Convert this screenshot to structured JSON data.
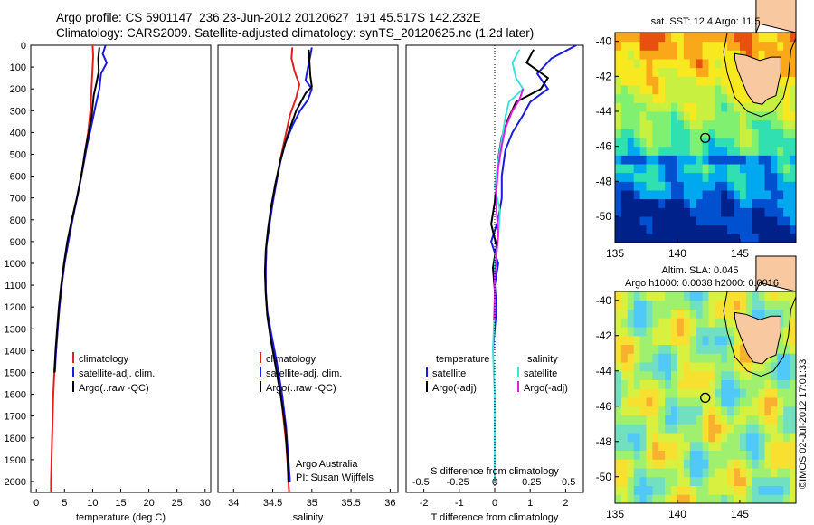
{
  "header": {
    "title_line1": "Argo profile: CS 5901147_236 23-Jun-2012 20120627_191 45.517S 142.232E",
    "title_line2": "Climatology: CARS2009. Satellite-adjusted climatology: synTS_20120625.nc (1.2d later)"
  },
  "footer_credit": "©IMOS 02-Jul-2012 17:01:33",
  "colors": {
    "climatology": "#e02020",
    "satellite": "#1a1ae0",
    "argo": "#000000",
    "sat_salinity": "#40e0e0",
    "argo_salinity": "#e020e0"
  },
  "chart_data": [
    {
      "type": "line",
      "xlabel": "temperature (deg C)",
      "ylabel": "",
      "xlim": [
        -1,
        31
      ],
      "ylim": [
        2050,
        0
      ],
      "xticks": [
        0,
        5,
        10,
        15,
        20,
        25,
        30
      ],
      "yticks": [
        0,
        100,
        200,
        300,
        400,
        500,
        600,
        700,
        800,
        900,
        1000,
        1100,
        1200,
        1300,
        1400,
        1500,
        1600,
        1700,
        1800,
        1900,
        2000
      ],
      "legend": [
        "climatology",
        "satellite-adj. clim.",
        "Argo(..raw -QC)"
      ],
      "series": [
        {
          "name": "climatology",
          "color": "#e02020",
          "points": [
            [
              10.0,
              0
            ],
            [
              10.1,
              50
            ],
            [
              10.0,
              100
            ],
            [
              9.8,
              200
            ],
            [
              9.6,
              300
            ],
            [
              9.2,
              400
            ],
            [
              8.6,
              500
            ],
            [
              8.0,
              600
            ],
            [
              7.2,
              700
            ],
            [
              6.3,
              800
            ],
            [
              5.6,
              900
            ],
            [
              5.0,
              1000
            ],
            [
              4.5,
              1100
            ],
            [
              4.1,
              1200
            ],
            [
              3.8,
              1300
            ],
            [
              3.5,
              1400
            ],
            [
              3.2,
              1500
            ],
            [
              3.0,
              1600
            ],
            [
              2.9,
              1700
            ],
            [
              2.8,
              1800
            ],
            [
              2.7,
              1900
            ],
            [
              2.6,
              2000
            ],
            [
              2.6,
              2050
            ]
          ]
        },
        {
          "name": "satellite-adj. clim.",
          "color": "#1a1ae0",
          "points": [
            [
              12.3,
              0
            ],
            [
              11.8,
              40
            ],
            [
              12.5,
              80
            ],
            [
              11.5,
              130
            ],
            [
              11.2,
              200
            ],
            [
              10.5,
              280
            ],
            [
              9.7,
              380
            ],
            [
              9.0,
              460
            ],
            [
              8.3,
              560
            ],
            [
              7.4,
              680
            ],
            [
              6.5,
              790
            ],
            [
              5.7,
              900
            ],
            [
              5.0,
              1000
            ],
            [
              4.5,
              1100
            ],
            [
              4.1,
              1200
            ],
            [
              3.8,
              1300
            ],
            [
              3.5,
              1400
            ],
            [
              3.3,
              1500
            ]
          ]
        },
        {
          "name": "Argo(..raw -QC)",
          "color": "#000000",
          "points": [
            [
              11.2,
              10
            ],
            [
              11.0,
              60
            ],
            [
              11.1,
              120
            ],
            [
              10.7,
              170
            ],
            [
              10.2,
              230
            ],
            [
              9.8,
              330
            ],
            [
              9.3,
              400
            ],
            [
              8.7,
              480
            ],
            [
              8.1,
              580
            ],
            [
              7.2,
              700
            ],
            [
              6.3,
              800
            ],
            [
              5.5,
              900
            ],
            [
              4.9,
              1000
            ],
            [
              4.4,
              1100
            ],
            [
              4.0,
              1200
            ],
            [
              3.7,
              1300
            ],
            [
              3.4,
              1400
            ],
            [
              3.2,
              1500
            ]
          ]
        }
      ]
    },
    {
      "type": "line",
      "xlabel": "salinity",
      "xlim": [
        33.8,
        36.1
      ],
      "ylim": [
        2050,
        0
      ],
      "xticks": [
        34,
        34.5,
        35,
        35.5,
        36
      ],
      "xticklabels": [
        "34",
        "34.5",
        "35",
        "35.5",
        "36"
      ],
      "legend": [
        "climatology",
        "satellite-adj. clim.",
        "Argo(..raw -QC)"
      ],
      "annotations": [
        "Argo Australia",
        "PI: Susan Wijffels"
      ],
      "series": [
        {
          "name": "climatology",
          "color": "#e02020",
          "points": [
            [
              34.75,
              10
            ],
            [
              34.74,
              60
            ],
            [
              34.78,
              120
            ],
            [
              34.84,
              180
            ],
            [
              34.8,
              240
            ],
            [
              34.72,
              320
            ],
            [
              34.66,
              420
            ],
            [
              34.6,
              520
            ],
            [
              34.55,
              620
            ],
            [
              34.5,
              720
            ],
            [
              34.45,
              820
            ],
            [
              34.42,
              920
            ],
            [
              34.41,
              1020
            ],
            [
              34.41,
              1120
            ],
            [
              34.43,
              1220
            ],
            [
              34.47,
              1320
            ],
            [
              34.52,
              1420
            ],
            [
              34.57,
              1520
            ],
            [
              34.61,
              1620
            ],
            [
              34.64,
              1720
            ],
            [
              34.67,
              1820
            ],
            [
              34.69,
              1920
            ],
            [
              34.7,
              2000
            ],
            [
              34.71,
              2050
            ]
          ]
        },
        {
          "name": "satellite-adj. clim.",
          "color": "#1a1ae0",
          "points": [
            [
              35.0,
              10
            ],
            [
              34.98,
              50
            ],
            [
              34.95,
              100
            ],
            [
              34.92,
              160
            ],
            [
              35.0,
              200
            ],
            [
              34.95,
              250
            ],
            [
              34.85,
              300
            ],
            [
              34.75,
              370
            ],
            [
              34.66,
              450
            ],
            [
              34.6,
              530
            ],
            [
              34.55,
              620
            ],
            [
              34.5,
              720
            ],
            [
              34.46,
              820
            ],
            [
              34.42,
              920
            ],
            [
              34.41,
              1020
            ],
            [
              34.41,
              1120
            ],
            [
              34.43,
              1220
            ],
            [
              34.48,
              1320
            ],
            [
              34.55,
              1450
            ],
            [
              34.62,
              1600
            ],
            [
              34.67,
              1750
            ],
            [
              34.7,
              1900
            ],
            [
              34.72,
              2000
            ]
          ]
        },
        {
          "name": "Argo(..raw -QC)",
          "color": "#000000",
          "points": [
            [
              34.96,
              20
            ],
            [
              34.97,
              80
            ],
            [
              34.98,
              140
            ],
            [
              35.0,
              190
            ],
            [
              34.92,
              220
            ],
            [
              34.8,
              300
            ],
            [
              34.72,
              380
            ],
            [
              34.65,
              460
            ],
            [
              34.59,
              540
            ],
            [
              34.53,
              640
            ],
            [
              34.48,
              740
            ],
            [
              34.44,
              840
            ],
            [
              34.41,
              940
            ],
            [
              34.4,
              1040
            ],
            [
              34.41,
              1140
            ],
            [
              34.43,
              1240
            ],
            [
              34.47,
              1340
            ],
            [
              34.53,
              1460
            ],
            [
              34.6,
              1600
            ],
            [
              34.66,
              1750
            ],
            [
              34.69,
              1900
            ],
            [
              34.7,
              2000
            ]
          ]
        }
      ]
    },
    {
      "type": "line",
      "xlabel": "T difference from climatology",
      "xlim": [
        -2.5,
        2.5
      ],
      "ylim": [
        2050,
        0
      ],
      "xticks": [
        -2,
        -1,
        0,
        1,
        2
      ],
      "secondary_xlabel": "S difference from climatology",
      "secondary_xticks": [
        -0.5,
        -0.25,
        0,
        0.25,
        0.5
      ],
      "secondary_xticklabels": [
        "-0.5",
        "-0.25",
        "0",
        "0.25",
        "0.5"
      ],
      "legend": [
        "temperature",
        "satellite",
        "Argo(-adj)",
        "salinity",
        "satellite",
        "Argo(-adj)"
      ],
      "series": [
        {
          "name": "satellite",
          "color": "#1a1ae0",
          "points": [
            [
              2.3,
              0
            ],
            [
              1.6,
              60
            ],
            [
              1.2,
              130
            ],
            [
              1.5,
              200
            ],
            [
              1.0,
              260
            ],
            [
              0.8,
              320
            ],
            [
              0.5,
              400
            ],
            [
              0.3,
              480
            ],
            [
              0.2,
              600
            ],
            [
              0.2,
              700
            ],
            [
              0.1,
              800
            ],
            [
              -0.1,
              900
            ],
            [
              0.1,
              1000
            ],
            [
              0.0,
              1100
            ],
            [
              0.05,
              1200
            ],
            [
              0.0,
              1300
            ],
            [
              -0.05,
              1400
            ]
          ]
        },
        {
          "name": "Argo(-adj)",
          "color": "#000000",
          "points": [
            [
              1.1,
              20
            ],
            [
              0.9,
              80
            ],
            [
              1.5,
              150
            ],
            [
              1.3,
              200
            ],
            [
              0.6,
              260
            ],
            [
              0.4,
              330
            ],
            [
              0.2,
              420
            ],
            [
              0.1,
              520
            ],
            [
              0.05,
              620
            ],
            [
              0.0,
              720
            ],
            [
              -0.1,
              820
            ],
            [
              0.05,
              920
            ],
            [
              -0.05,
              1020
            ],
            [
              0.0,
              1120
            ],
            [
              0.0,
              1220
            ]
          ]
        },
        {
          "name": "satellite",
          "color": "#40e0e0",
          "points": [
            [
              0.7,
              20
            ],
            [
              0.5,
              80
            ],
            [
              0.6,
              150
            ],
            [
              0.8,
              200
            ],
            [
              0.4,
              260
            ],
            [
              0.3,
              330
            ],
            [
              0.2,
              430
            ],
            [
              0.1,
              530
            ],
            [
              0.0,
              650
            ],
            [
              0.15,
              760
            ],
            [
              0.1,
              880
            ],
            [
              0.0,
              1000
            ],
            [
              0.0,
              1200
            ],
            [
              -0.05,
              1400
            ],
            [
              0.0,
              1600
            ],
            [
              0.0,
              1800
            ],
            [
              0.0,
              2000
            ]
          ]
        },
        {
          "name": "Argo(-adj)",
          "color": "#e020e0",
          "points": [
            [
              0.8,
              200
            ],
            [
              0.7,
              250
            ],
            [
              0.5,
              300
            ],
            [
              0.3,
              380
            ],
            [
              0.2,
              460
            ],
            [
              0.1,
              560
            ],
            [
              0.05,
              660
            ],
            [
              0.05,
              760
            ],
            [
              0.1,
              860
            ],
            [
              0.05,
              960
            ],
            [
              0.0,
              1060
            ],
            [
              0.0,
              1160
            ],
            [
              -0.02,
              1260
            ]
          ]
        }
      ]
    },
    {
      "type": "heatmap",
      "title": "sat. SST: 12.4  Argo: 11.5",
      "xlim": [
        135,
        149.5
      ],
      "ylim": [
        -51.5,
        -39.5
      ],
      "xticks": [
        135,
        140,
        145
      ],
      "yticks": [
        -40,
        -42,
        -44,
        -46,
        -48,
        -50
      ],
      "yticklabels": [
        "-40",
        "-42",
        "-44",
        "-46",
        "-48",
        "-50"
      ],
      "marker": {
        "lon": 142.23,
        "lat": -45.52
      },
      "colormap": [
        "#00208a",
        "#0050d0",
        "#00a8f0",
        "#30e0b0",
        "#80f070",
        "#c8f040",
        "#f8e820",
        "#f8a818",
        "#e85010"
      ]
    },
    {
      "type": "heatmap",
      "title_line1": "Altim. SLA: 0.045",
      "title_line2": "Argo h1000: 0.0038 h2000: 0.0016",
      "xlim": [
        135,
        149.5
      ],
      "ylim": [
        -51.5,
        -39.5
      ],
      "xticks": [
        135,
        140,
        145
      ],
      "yticks": [
        -40,
        -42,
        -44,
        -46,
        -48,
        -50
      ],
      "yticklabels": [
        "-40",
        "-42",
        "-44",
        "-46",
        "-48",
        "-50"
      ],
      "marker": {
        "lon": 142.23,
        "lat": -45.52
      },
      "colormap": [
        "#50c8f8",
        "#70e0c0",
        "#a0f070",
        "#d8f040",
        "#f8e030",
        "#f8b030"
      ]
    }
  ]
}
